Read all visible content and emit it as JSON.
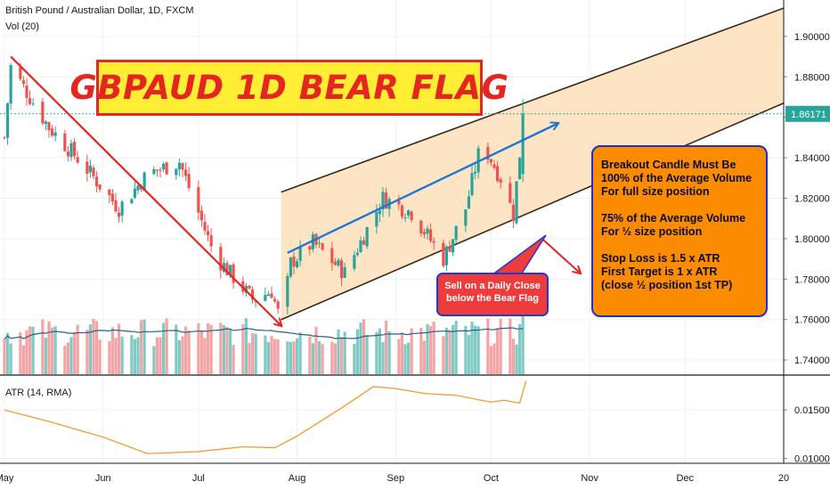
{
  "legend": {
    "symbol": "British Pound / Australian Dollar, 1D, FXCM",
    "volume": "Vol (20)",
    "atr": "ATR (14, RMA)"
  },
  "headline": "GBPAUD 1D BEAR FLAG",
  "note_conditions": {
    "lines": [
      "Breakout Candle Must Be",
      "100% of the Average Volume",
      "For full size position"
    ],
    "lines2": [
      "75% of the Average Volume",
      "For ½ size position"
    ],
    "lines3": [
      "Stop Loss is 1.5 x ATR",
      "First Target is 1 x ATR",
      "(close ½ position 1st TP)"
    ]
  },
  "note_sell": {
    "line1": "Sell on a Daily Close",
    "line2": "below the Bear Flag"
  },
  "last_price_label": "1.86171",
  "colors": {
    "up": "#26a69a",
    "down": "#ef5350",
    "vol_up": "#7fcbc4",
    "vol_down": "#f4a4a5",
    "channel_fill": "#fde3c2",
    "trend_red": "#e52620",
    "trend_blue": "#1f77d4",
    "atr_line": "#f39c34",
    "vol_ma": "#2a5d8a",
    "note_orange": "#fb8c00",
    "note_red": "#ee3c3c"
  },
  "chart_data": [
    {
      "type": "candlestick",
      "title": "British Pound / Australian Dollar, 1D, FXCM",
      "x_labels": [
        "May",
        "Jun",
        "Jul",
        "Aug",
        "Sep",
        "Oct",
        "Nov",
        "Dec",
        "20"
      ],
      "y_ticks": [
        1.74,
        1.76,
        1.78,
        1.8,
        1.82,
        1.84,
        1.86,
        1.88,
        1.9
      ],
      "y_tick_labels": [
        "1.74000",
        "1.76000",
        "1.78000",
        "1.80000",
        "1.82000",
        "1.84000",
        "1.86000",
        "1.88000",
        "1.90000"
      ],
      "ylim": [
        1.733,
        1.918
      ],
      "last_price": 1.86171,
      "close_path": [
        {
          "date": "2019-05-01",
          "close": 1.85
        },
        {
          "date": "2019-05-03",
          "close": 1.885
        },
        {
          "date": "2019-05-15",
          "close": 1.855
        },
        {
          "date": "2019-05-25",
          "close": 1.838
        },
        {
          "date": "2019-06-06",
          "close": 1.815
        },
        {
          "date": "2019-06-15",
          "close": 1.832
        },
        {
          "date": "2019-06-25",
          "close": 1.838
        },
        {
          "date": "2019-07-06",
          "close": 1.792
        },
        {
          "date": "2019-07-18",
          "close": 1.77
        },
        {
          "date": "2019-07-24",
          "close": 1.774
        },
        {
          "date": "2019-07-27",
          "close": 1.758
        },
        {
          "date": "2019-07-30",
          "close": 1.788
        },
        {
          "date": "2019-08-06",
          "close": 1.798
        },
        {
          "date": "2019-08-16",
          "close": 1.783
        },
        {
          "date": "2019-08-28",
          "close": 1.82
        },
        {
          "date": "2019-09-06",
          "close": 1.813
        },
        {
          "date": "2019-09-16",
          "close": 1.79
        },
        {
          "date": "2019-09-23",
          "close": 1.815
        },
        {
          "date": "2019-09-28",
          "close": 1.848
        },
        {
          "date": "2019-10-04",
          "close": 1.83
        },
        {
          "date": "2019-10-08",
          "close": 1.812
        },
        {
          "date": "2019-10-10",
          "close": 1.842
        },
        {
          "date": "2019-10-12",
          "close": 1.862
        }
      ],
      "annotations": {
        "bear_pole": {
          "from": {
            "date": "2019-05-03",
            "price": 1.89
          },
          "to": {
            "date": "2019-07-27",
            "price": 1.757
          }
        },
        "flag_upper": {
          "from": {
            "date": "2019-07-27",
            "price": 1.823
          },
          "to": {
            "date": "2020-01-01",
            "price": 1.914
          }
        },
        "flag_lower": {
          "from": {
            "date": "2019-07-27",
            "price": 1.76
          },
          "to": {
            "date": "2020-01-01",
            "price": 1.867
          }
        },
        "flag_midline": {
          "from": {
            "date": "2019-07-29",
            "price": 1.793
          },
          "to": {
            "date": "2019-10-22",
            "price": 1.857
          }
        },
        "breakdown_arrow": {
          "from": {
            "date": "2019-10-17",
            "price": 1.8
          },
          "to": {
            "date": "2019-10-29",
            "price": 1.783
          }
        }
      }
    },
    {
      "type": "bar",
      "title": "Vol (20)",
      "note": "volume bars with 20-period moving average, relative scale"
    },
    {
      "type": "line",
      "title": "ATR (14, RMA)",
      "y_ticks": [
        0.01,
        0.015
      ],
      "y_tick_labels": [
        "0.01000",
        "0.01500"
      ],
      "ylim": [
        0.0095,
        0.0185
      ],
      "x": [
        "2019-05-01",
        "2019-05-15",
        "2019-06-01",
        "2019-06-15",
        "2019-07-01",
        "2019-07-15",
        "2019-07-25",
        "2019-08-01",
        "2019-08-15",
        "2019-08-25",
        "2019-09-01",
        "2019-09-10",
        "2019-09-20",
        "2019-10-01",
        "2019-10-05",
        "2019-10-10",
        "2019-10-12"
      ],
      "values": [
        0.015,
        0.0138,
        0.0122,
        0.0105,
        0.0107,
        0.0112,
        0.0111,
        0.0123,
        0.0152,
        0.0174,
        0.0172,
        0.0167,
        0.0165,
        0.0158,
        0.016,
        0.0157,
        0.018
      ]
    }
  ]
}
